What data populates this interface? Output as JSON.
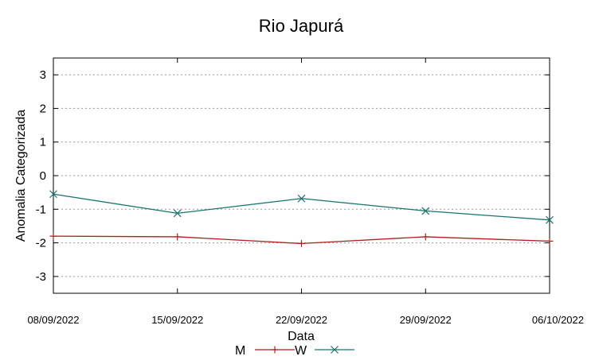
{
  "chart_data": {
    "type": "line",
    "title": "Rio Japurá",
    "xlabel": "Data",
    "ylabel": "Anomalia Categorizada",
    "categories": [
      "08/09/2022",
      "15/09/2022",
      "22/09/2022",
      "29/09/2022",
      "06/10/2022"
    ],
    "ylim": [
      -3.5,
      3.5
    ],
    "yticks": [
      3,
      2,
      1,
      0,
      -1,
      -2,
      -3
    ],
    "ytick_labels": [
      "3",
      "2",
      "1",
      "0",
      "-1",
      "-2",
      "-3"
    ],
    "grid": true,
    "legend_position": "bottom-center",
    "series": [
      {
        "name": "M",
        "marker": "plus",
        "color": "#b01e1e",
        "values": [
          -1.8,
          -1.82,
          -2.02,
          -1.82,
          -1.95
        ]
      },
      {
        "name": "W",
        "marker": "x",
        "color": "#1a7370",
        "values": [
          -0.55,
          -1.12,
          -0.68,
          -1.05,
          -1.32
        ]
      }
    ]
  }
}
